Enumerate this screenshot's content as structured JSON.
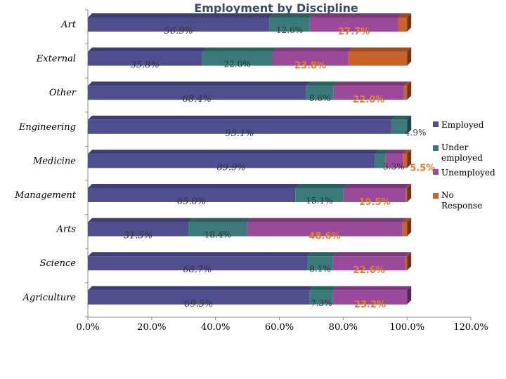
{
  "chart_data": {
    "type": "bar",
    "orientation": "horizontal",
    "stacked": true,
    "title": "Employment by Discipline",
    "categories": [
      "Art",
      "External",
      "Other",
      "Engineering",
      "Medicine",
      "Management",
      "Arts",
      "Science",
      "Agriculture"
    ],
    "series": [
      {
        "name": "Employed",
        "color": "#4f4f8f",
        "values": [
          56.9,
          35.8,
          68.4,
          95.1,
          89.9,
          65.0,
          31.5,
          68.7,
          69.5
        ],
        "labels": [
          "56.9%",
          "35.8%",
          "68.4%",
          "95.1%",
          "89.9%",
          "65.0%",
          "31.5%",
          "68.7%",
          "69.5%"
        ]
      },
      {
        "name": "Under employed",
        "color": "#3a7a7a",
        "values": [
          12.6,
          22.0,
          8.6,
          4.9,
          3.3,
          15.1,
          18.4,
          8.1,
          7.3
        ],
        "labels": [
          "12.6%",
          "22.0%",
          "8.6%",
          "4.9%",
          "3.3%",
          "15.1%",
          "18.4%",
          "8.1%",
          "7.3%"
        ]
      },
      {
        "name": "Unemployed",
        "color": "#9b4a9b",
        "values": [
          27.7,
          23.8,
          22.0,
          0.0,
          5.5,
          19.5,
          48.6,
          22.6,
          23.2
        ],
        "labels": [
          "27.7%",
          "23.8%",
          "22.0%",
          "",
          "5.5%",
          "19.5%",
          "48.6%",
          "22.6%",
          "23.2%"
        ]
      },
      {
        "name": "No Response",
        "color": "#c8632a",
        "values": [
          2.8,
          18.4,
          1.0,
          0.0,
          1.3,
          0.4,
          1.5,
          0.6,
          0.0
        ],
        "labels": [
          "",
          "",
          "",
          "",
          "",
          "",
          "",
          "",
          ""
        ]
      }
    ],
    "xlim": [
      0,
      120
    ],
    "xticks": [
      "0.0%",
      "20.0%",
      "40.0%",
      "60.0%",
      "80.0%",
      "100.0%",
      "120.0%"
    ],
    "legend_position": "right",
    "grid": false
  }
}
